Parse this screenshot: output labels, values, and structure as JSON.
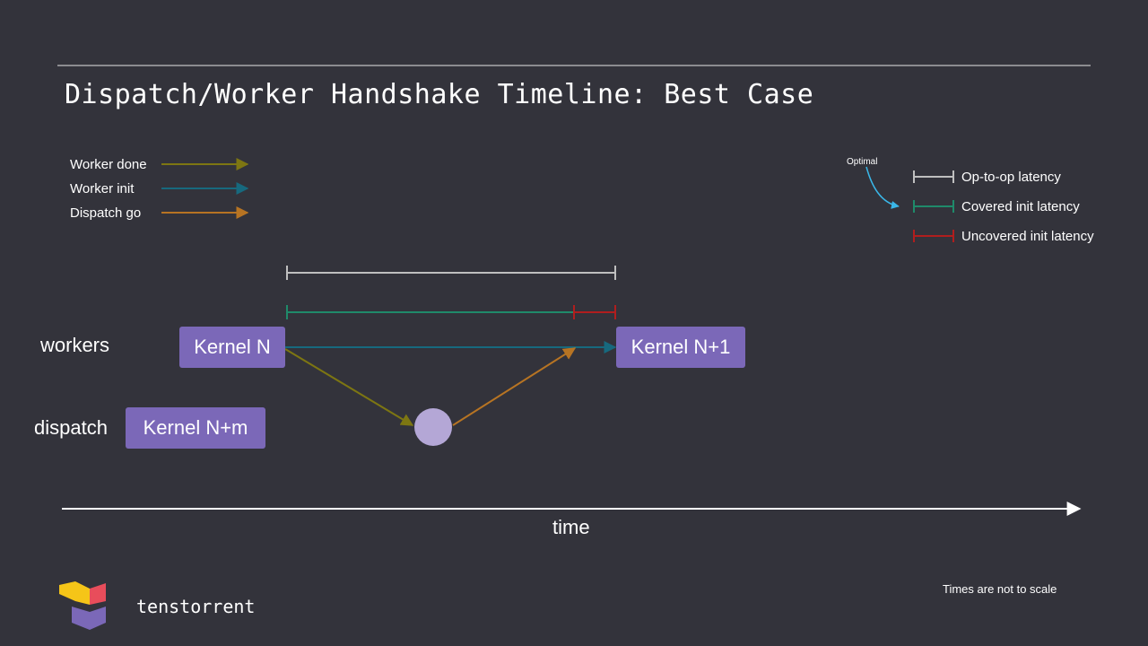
{
  "slide": {
    "title": "Dispatch/Worker Handshake Timeline: Best Case",
    "note": "Times are not to scale",
    "brand": "tenstorrent"
  },
  "legend_left": [
    {
      "label": "Worker done",
      "color": "#7d7612"
    },
    {
      "label": "Worker init",
      "color": "#17697e"
    },
    {
      "label": "Dispatch go",
      "color": "#b77423"
    }
  ],
  "legend_right": {
    "optimal_label": "Optimal",
    "optimal_arrow_color": "#3ab7e8",
    "items": [
      {
        "label": "Op-to-op latency",
        "color": "#bfbfbf"
      },
      {
        "label": "Covered init latency",
        "color": "#1f8a6a"
      },
      {
        "label": "Uncovered init latency",
        "color": "#b01e1e"
      }
    ]
  },
  "rows": {
    "workers": "workers",
    "dispatch": "dispatch"
  },
  "kernels": {
    "current": "Kernel N",
    "next": "Kernel N+1",
    "dispatch": "Kernel N+m"
  },
  "axis": {
    "label": "time"
  }
}
